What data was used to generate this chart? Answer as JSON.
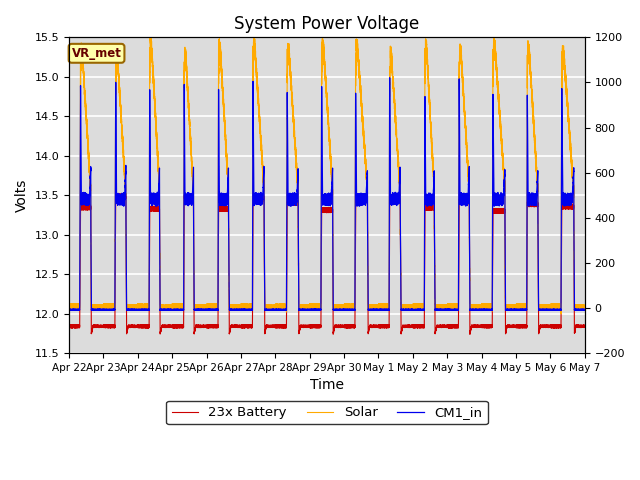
{
  "title": "System Power Voltage",
  "xlabel": "Time",
  "ylabel": "Volts",
  "ylim_left": [
    11.5,
    15.5
  ],
  "ylim_right": [
    -200,
    1200
  ],
  "yticks_left": [
    11.5,
    12.0,
    12.5,
    13.0,
    13.5,
    14.0,
    14.5,
    15.0,
    15.5
  ],
  "yticks_right": [
    -200,
    0,
    200,
    400,
    600,
    800,
    1000,
    1200
  ],
  "date_labels": [
    "Apr 22",
    "Apr 23",
    "Apr 24",
    "Apr 25",
    "Apr 26",
    "Apr 27",
    "Apr 28",
    "Apr 29",
    "Apr 30",
    "May 1",
    "May 2",
    "May 3",
    "May 4",
    "May 5",
    "May 6",
    "May 7"
  ],
  "color_battery": "#cc0000",
  "color_solar": "#ffaa00",
  "color_cm1": "#0000ee",
  "legend_labels": [
    "23x Battery",
    "Solar",
    "CM1_in"
  ],
  "vr_met_label": "VR_met",
  "background_color": "#dcdcdc",
  "grid_color": "#ffffff",
  "title_fontsize": 12,
  "label_fontsize": 10,
  "tick_fontsize": 8,
  "num_days": 15
}
